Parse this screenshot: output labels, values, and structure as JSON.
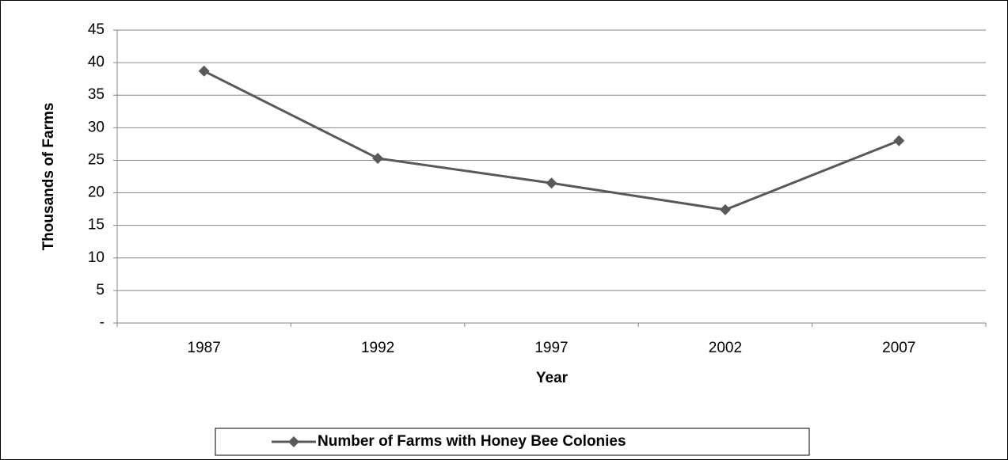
{
  "chart_data": {
    "type": "line",
    "y_label": "Thousands of Farms",
    "x_label": "Year",
    "categories": [
      "1987",
      "1992",
      "1997",
      "2002",
      "2007"
    ],
    "series": [
      {
        "name": "Number of Farms with Honey Bee Colonies",
        "color": "#595959",
        "values": [
          38.7,
          25.3,
          21.5,
          17.4,
          28.0
        ]
      }
    ],
    "ylim": [
      0,
      45
    ],
    "yticks": [
      {
        "value": 0,
        "label": "-"
      },
      5,
      10,
      15,
      20,
      25,
      30,
      35,
      40,
      45
    ],
    "grid": true,
    "legend": "bottom"
  }
}
